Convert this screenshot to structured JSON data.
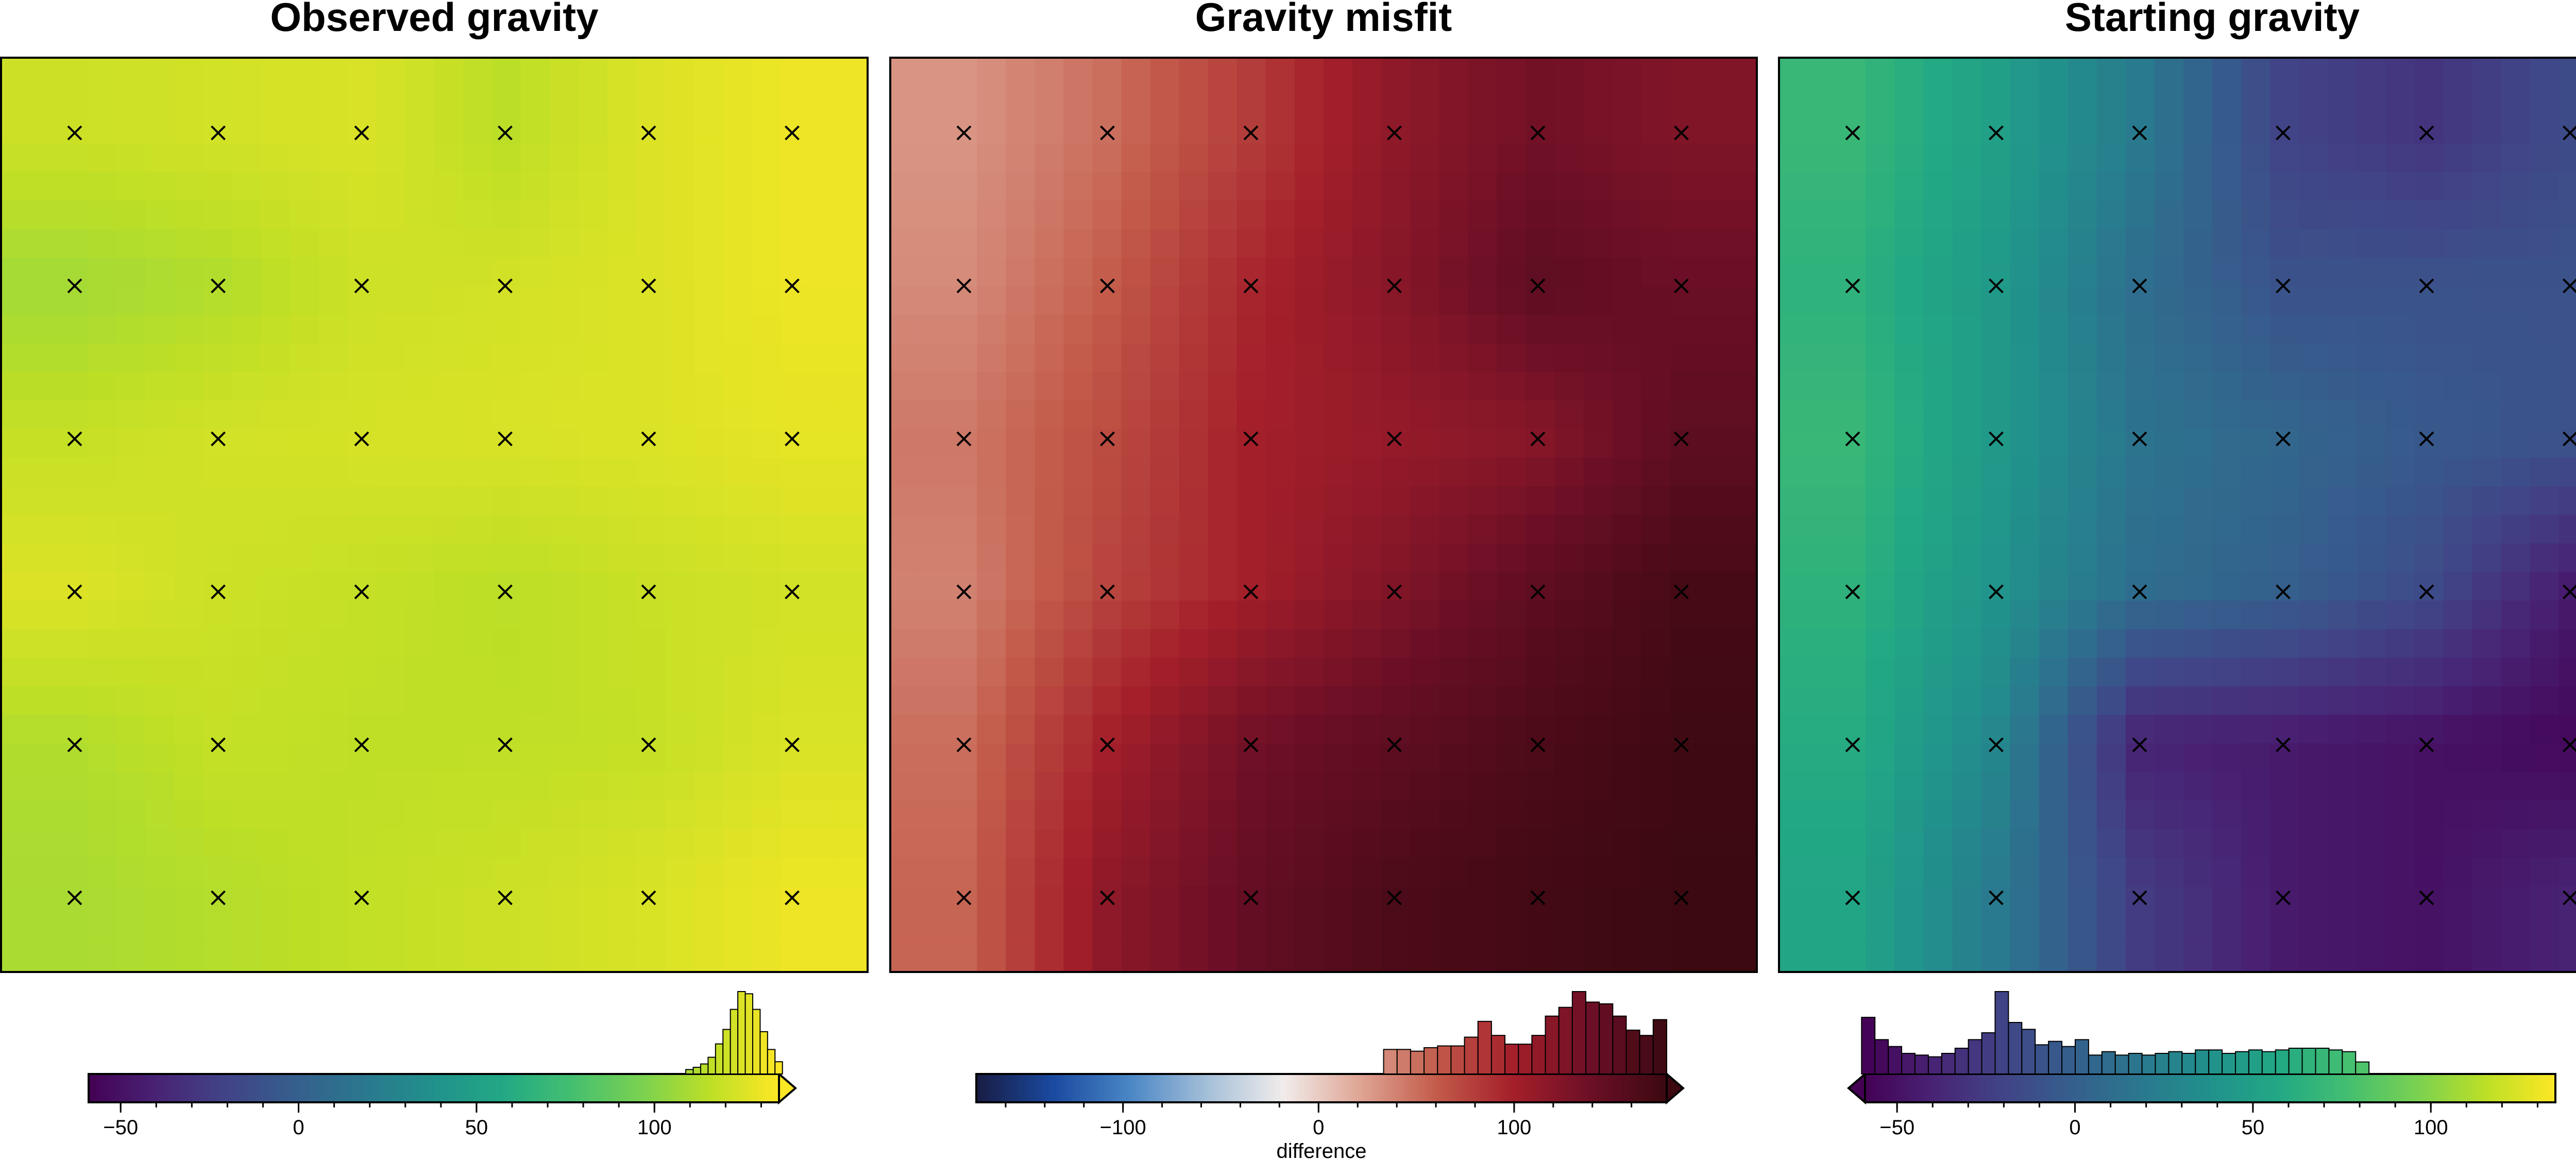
{
  "figure": {
    "panels": [
      {
        "title": "Observed gravity",
        "cbar_label": ""
      },
      {
        "title": "Gravity misfit",
        "cbar_label": "difference"
      },
      {
        "title": "Starting gravity",
        "cbar_label": ""
      }
    ]
  },
  "colors": {
    "viridis": [
      "#440154",
      "#482475",
      "#414487",
      "#355f8d",
      "#2a788e",
      "#21918c",
      "#22a884",
      "#44bf70",
      "#7ad151",
      "#bddf26",
      "#fde725"
    ],
    "balance": [
      "#181c43",
      "#1a4aa0",
      "#4a86c5",
      "#a4bfd8",
      "#f1eceb",
      "#dfa594",
      "#c35b4a",
      "#a41f2a",
      "#6c0f26",
      "#3c0911"
    ]
  },
  "chart_data": [
    {
      "type": "heatmap",
      "title": "Observed gravity",
      "colormap": "viridis",
      "clim": [
        -59,
        135
      ],
      "extend": "max",
      "colorbar_ticks": [
        -50,
        0,
        50,
        100
      ],
      "colorbar_tick_labels": [
        "−50",
        "0",
        "50",
        "100"
      ],
      "grid_rows": 6,
      "grid_cols": 6,
      "values": [
        [
          120,
          122,
          124,
          115,
          125,
          130
        ],
        [
          108,
          112,
          120,
          122,
          125,
          130
        ],
        [
          118,
          122,
          123,
          124,
          125,
          128
        ],
        [
          125,
          120,
          118,
          115,
          119,
          122
        ],
        [
          112,
          118,
          116,
          116,
          118,
          124
        ],
        [
          110,
          113,
          117,
          120,
          124,
          130
        ]
      ],
      "histogram": [
        4,
        6,
        9,
        15,
        27,
        40,
        58,
        74,
        72,
        58,
        38,
        22,
        11
      ]
    },
    {
      "type": "heatmap",
      "title": "Gravity misfit",
      "colormap": "balance",
      "clim": [
        -175,
        178
      ],
      "extend": "max",
      "colorbar_label": "difference",
      "colorbar_ticks": [
        -100,
        0,
        100
      ],
      "colorbar_tick_labels": [
        "−100",
        "0",
        "100"
      ],
      "grid_rows": 6,
      "grid_cols": 6,
      "values": [
        [
          30,
          50,
          80,
          115,
          135,
          125
        ],
        [
          35,
          60,
          95,
          120,
          150,
          140
        ],
        [
          45,
          70,
          100,
          110,
          120,
          150
        ],
        [
          40,
          75,
          100,
          125,
          150,
          170
        ],
        [
          50,
          100,
          135,
          150,
          165,
          175
        ],
        [
          55,
          115,
          145,
          165,
          172,
          178
        ]
      ],
      "histogram": [
        14,
        14,
        13,
        15,
        16,
        16,
        21,
        30,
        22,
        17,
        17,
        22,
        33,
        38,
        47,
        41,
        40,
        33,
        25,
        22,
        31
      ]
    },
    {
      "type": "heatmap",
      "title": "Starting gravity",
      "colormap": "viridis",
      "clim": [
        -59,
        135
      ],
      "extend": "min",
      "colorbar_ticks": [
        -50,
        0,
        50,
        100
      ],
      "colorbar_tick_labels": [
        "−50",
        "0",
        "50",
        "100"
      ],
      "grid_rows": 6,
      "grid_cols": 6,
      "values": [
        [
          70,
          50,
          20,
          -20,
          -30,
          -15
        ],
        [
          65,
          45,
          10,
          -10,
          -10,
          -10
        ],
        [
          70,
          45,
          15,
          5,
          -5,
          -10
        ],
        [
          65,
          40,
          10,
          0,
          -15,
          -45
        ],
        [
          60,
          30,
          -40,
          -45,
          -50,
          -55
        ],
        [
          55,
          20,
          -25,
          -45,
          -50,
          -40
        ]
      ],
      "histogram": [
        33,
        20,
        16,
        12,
        11,
        10,
        12,
        15,
        20,
        24,
        48,
        30,
        26,
        17,
        19,
        16,
        20,
        11,
        13,
        11,
        12,
        11,
        12,
        13,
        12,
        14,
        14,
        12,
        13,
        14,
        13,
        14,
        15,
        15,
        15,
        14,
        13,
        7
      ]
    }
  ]
}
